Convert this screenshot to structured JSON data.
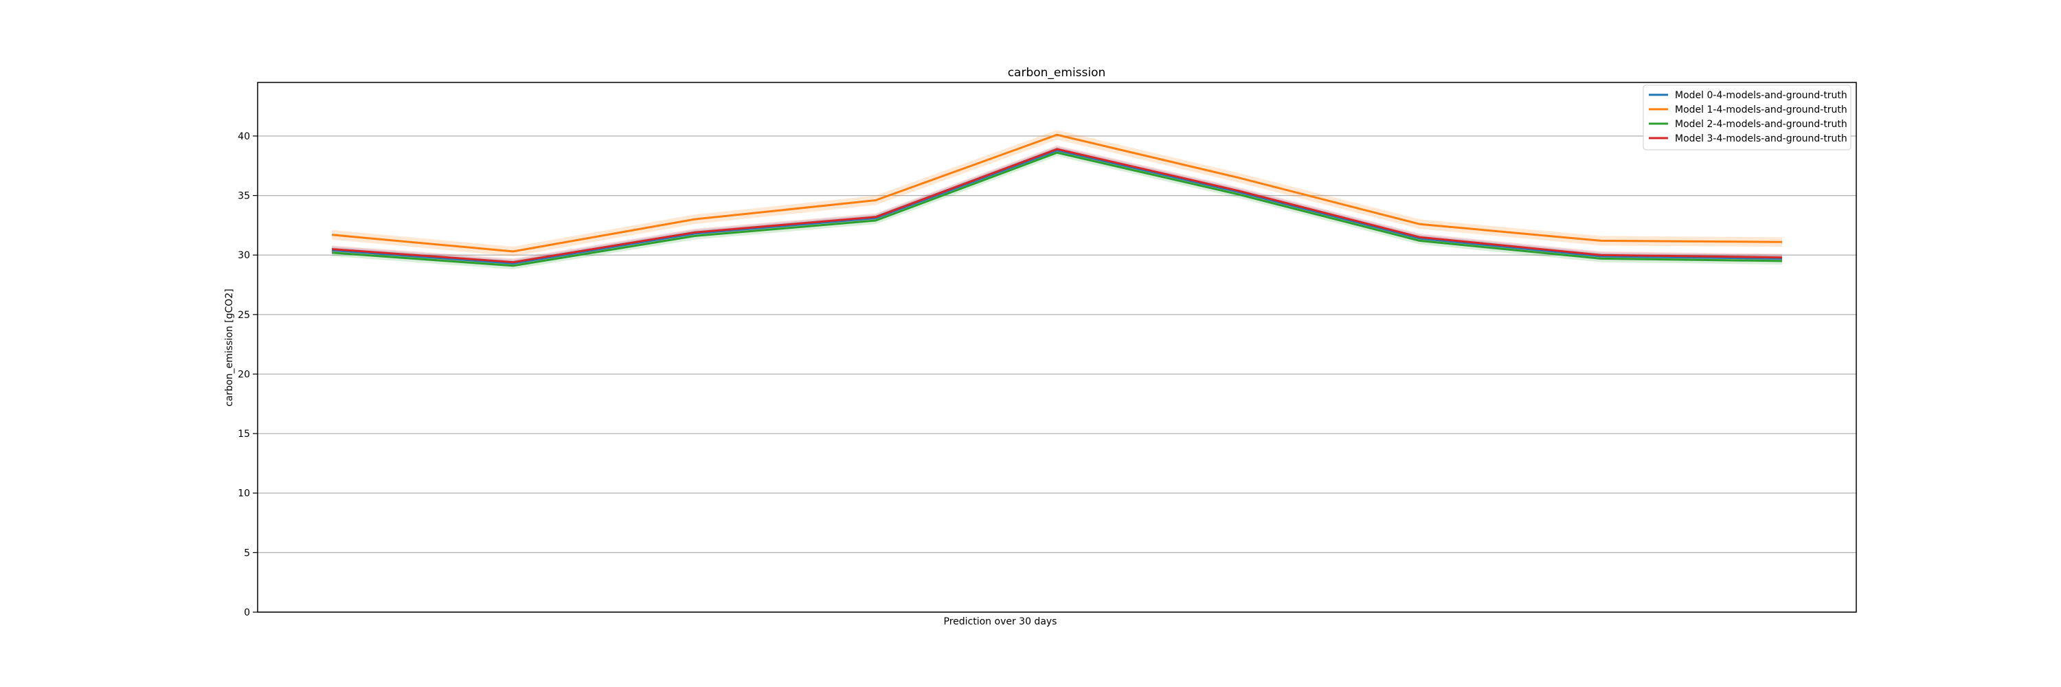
{
  "chart_data": {
    "type": "line",
    "title": "carbon_emission",
    "xlabel": "Prediction over 30 days",
    "ylabel": "carbon_emission [gCO2]",
    "ylim": [
      0,
      44.5
    ],
    "yticks": [
      0,
      5,
      10,
      15,
      20,
      25,
      30,
      35,
      40
    ],
    "ytick_labels": [
      "0",
      "5",
      "10",
      "15",
      "20",
      "25",
      "30",
      "35",
      "40"
    ],
    "grid": "horizontal",
    "legend_position": "top-right",
    "x": [
      1,
      2,
      3,
      4,
      5,
      6,
      7,
      8,
      9
    ],
    "series": [
      {
        "name": "Model 0-4-models-and-ground-truth",
        "color": "#1f77b4",
        "values": [
          30.4,
          29.3,
          31.8,
          33.1,
          38.8,
          35.3,
          31.4,
          29.9,
          29.7
        ],
        "band": [
          0.3,
          0.3,
          0.3,
          0.3,
          0.3,
          0.3,
          0.3,
          0.3,
          0.3
        ]
      },
      {
        "name": "Model 1-4-models-and-ground-truth",
        "color": "#ff7f0e",
        "values": [
          31.7,
          30.3,
          33.0,
          34.6,
          40.1,
          36.5,
          32.6,
          31.2,
          31.1
        ],
        "band": [
          0.4,
          0.4,
          0.4,
          0.4,
          0.4,
          0.4,
          0.4,
          0.4,
          0.4
        ]
      },
      {
        "name": "Model 2-4-models-and-ground-truth",
        "color": "#2ca02c",
        "values": [
          30.2,
          29.1,
          31.6,
          32.9,
          38.6,
          35.1,
          31.2,
          29.7,
          29.5
        ],
        "band": [
          0.3,
          0.3,
          0.3,
          0.3,
          0.3,
          0.3,
          0.3,
          0.3,
          0.3
        ]
      },
      {
        "name": "Model 3-4-models-and-ground-truth",
        "color": "#d62728",
        "values": [
          30.5,
          29.4,
          31.9,
          33.2,
          38.9,
          35.4,
          31.5,
          30.0,
          29.8
        ],
        "band": [
          0.3,
          0.3,
          0.3,
          0.3,
          0.3,
          0.3,
          0.3,
          0.3,
          0.3
        ]
      }
    ]
  }
}
